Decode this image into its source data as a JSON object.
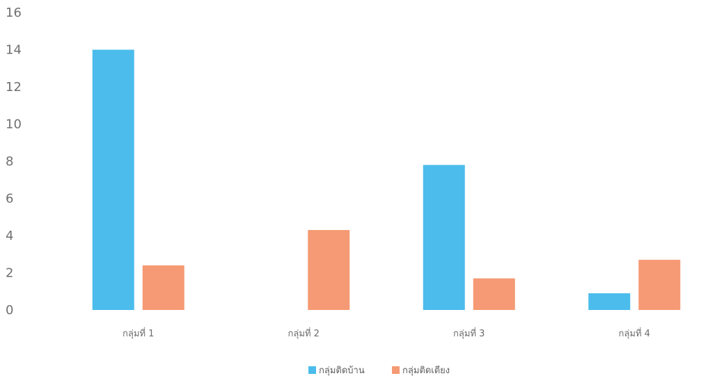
{
  "chart_data": {
    "type": "bar",
    "categories": [
      "กลุ่มที่ 1",
      "กลุ่มที่ 2",
      "กลุ่มที่ 3",
      "กลุ่มที่ 4"
    ],
    "series": [
      {
        "name": "กลุ่มติดบ้าน",
        "values": [
          14,
          0,
          7.8,
          0.9
        ],
        "color": "#4bbcec"
      },
      {
        "name": "กลุ่มติดเตียง",
        "values": [
          2.4,
          4.3,
          1.7,
          2.7
        ],
        "color": "#f59a74"
      }
    ],
    "ylim": [
      0,
      16
    ],
    "yticks": [
      "0",
      "2",
      "4",
      "6",
      "8",
      "10",
      "12",
      "14",
      "16"
    ],
    "grid": false,
    "legend_position": "bottom-center",
    "title": "",
    "xlabel": "",
    "ylabel": ""
  }
}
